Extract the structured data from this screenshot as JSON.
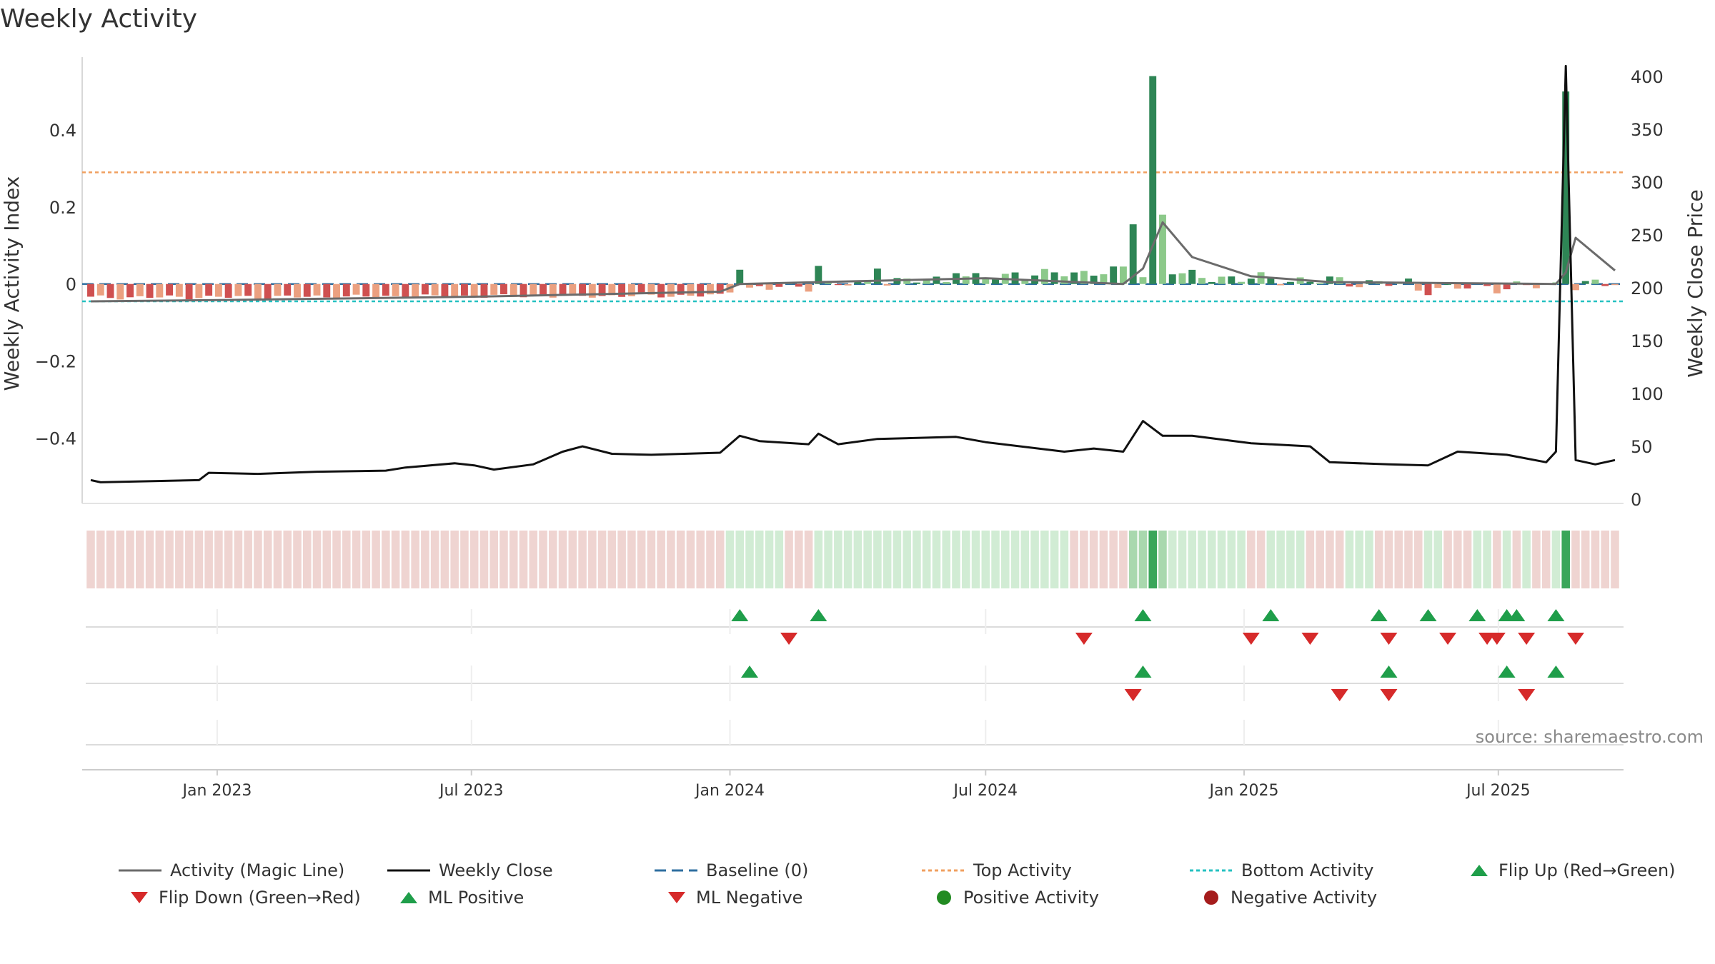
{
  "title": "Weekly Activity",
  "source": "source: sharemaestro.com",
  "colors": {
    "magic_line": "#6b6b6b",
    "close": "#111111",
    "baseline": "#2f6fa0",
    "top": "#f0a060",
    "bottom": "#25c1c1",
    "pos_dark": "#2e8555",
    "pos_light": "#8cc98a",
    "neg_dark": "#cf5050",
    "neg_light": "#eba080",
    "up": "#1f9e4a",
    "down": "#d62a2a",
    "pos_marker": "#228b22",
    "neg_marker": "#a51c1c",
    "strip_neg": "#efd4d1",
    "strip_pos": "#d1ecd4",
    "strip_pos_strong": "#3aa65a",
    "strip_pos_mid": "#a9d8ae"
  },
  "chart_data": {
    "type": "bar",
    "title": "Weekly Activity",
    "ylabel": "Weekly Activity Index",
    "y2label": "Weekly Close Price",
    "ylim": [
      -0.57,
      0.58
    ],
    "y2lim": [
      -4,
      415
    ],
    "yticks": [
      0.4,
      0.2,
      0,
      -0.2,
      -0.4
    ],
    "ytick_labels": [
      "0.4",
      "0.2",
      "0",
      "−0.2",
      "−0.4"
    ],
    "y2ticks": [
      400,
      350,
      300,
      250,
      200,
      150,
      100,
      50,
      0
    ],
    "x_range": [
      "2022-10-03",
      "2025-09-22"
    ],
    "xticks": [
      "2023-01-01",
      "2023-07-01",
      "2024-01-01",
      "2024-07-01",
      "2025-01-01",
      "2025-07-01"
    ],
    "xtick_labels": [
      "Jan 2023",
      "Jul 2023",
      "Jan 2024",
      "Jul 2024",
      "Jan 2025",
      "Jul 2025"
    ],
    "top_activity": 0.29,
    "bottom_activity": -0.045,
    "baseline": 0,
    "activity_segments": [
      {
        "start": "2022-10-03",
        "end": "2023-12-25",
        "from": -0.035,
        "to": -0.03,
        "noise": 0.004
      },
      {
        "start": "2024-01-01",
        "end": "2024-10-07",
        "from": -0.015,
        "to": 0.035,
        "noise": 0.01
      },
      {
        "start": "2024-10-14",
        "end": "2025-04-28",
        "from": 0.025,
        "to": 0.0,
        "noise": 0.012
      },
      {
        "start": "2025-05-05",
        "end": "2025-09-22",
        "from": -0.012,
        "to": 0.0,
        "noise": 0.012
      }
    ],
    "activity_spikes": [
      {
        "date": "2024-01-08",
        "value": 0.037
      },
      {
        "date": "2024-03-04",
        "value": 0.047
      },
      {
        "date": "2024-04-15",
        "value": 0.04
      },
      {
        "date": "2024-06-10",
        "value": 0.028
      },
      {
        "date": "2024-07-22",
        "value": 0.03
      },
      {
        "date": "2024-10-14",
        "value": 0.155
      },
      {
        "date": "2024-10-28",
        "value": 0.54
      },
      {
        "date": "2024-11-04",
        "value": 0.18
      },
      {
        "date": "2024-11-11",
        "value": 0.025
      },
      {
        "date": "2025-08-18",
        "value": 0.5
      }
    ],
    "magic_line": [
      {
        "date": "2022-10-03",
        "value": -0.045
      },
      {
        "date": "2023-01-02",
        "value": -0.042
      },
      {
        "date": "2023-07-03",
        "value": -0.033
      },
      {
        "date": "2023-12-25",
        "value": -0.02
      },
      {
        "date": "2024-01-08",
        "value": 0.0
      },
      {
        "date": "2024-07-01",
        "value": 0.015
      },
      {
        "date": "2024-10-07",
        "value": 0.0
      },
      {
        "date": "2024-10-21",
        "value": 0.04
      },
      {
        "date": "2024-11-04",
        "value": 0.16
      },
      {
        "date": "2024-11-25",
        "value": 0.07
      },
      {
        "date": "2025-01-06",
        "value": 0.02
      },
      {
        "date": "2025-03-03",
        "value": 0.005
      },
      {
        "date": "2025-08-11",
        "value": 0.0
      },
      {
        "date": "2025-08-18",
        "value": 0.03
      },
      {
        "date": "2025-08-25",
        "value": 0.12
      },
      {
        "date": "2025-09-22",
        "value": 0.035
      }
    ],
    "weekly_close": [
      {
        "date": "2022-10-03",
        "value": 18
      },
      {
        "date": "2022-10-10",
        "value": 16
      },
      {
        "date": "2022-12-19",
        "value": 18
      },
      {
        "date": "2022-12-26",
        "value": 25
      },
      {
        "date": "2023-01-30",
        "value": 24
      },
      {
        "date": "2023-03-13",
        "value": 26
      },
      {
        "date": "2023-05-01",
        "value": 27
      },
      {
        "date": "2023-05-15",
        "value": 30
      },
      {
        "date": "2023-06-19",
        "value": 34
      },
      {
        "date": "2023-07-03",
        "value": 32
      },
      {
        "date": "2023-07-17",
        "value": 28
      },
      {
        "date": "2023-08-14",
        "value": 33
      },
      {
        "date": "2023-09-04",
        "value": 45
      },
      {
        "date": "2023-09-18",
        "value": 50
      },
      {
        "date": "2023-10-09",
        "value": 43
      },
      {
        "date": "2023-11-06",
        "value": 42
      },
      {
        "date": "2023-12-25",
        "value": 44
      },
      {
        "date": "2024-01-08",
        "value": 60
      },
      {
        "date": "2024-01-22",
        "value": 55
      },
      {
        "date": "2024-02-26",
        "value": 52
      },
      {
        "date": "2024-03-04",
        "value": 62
      },
      {
        "date": "2024-03-18",
        "value": 52
      },
      {
        "date": "2024-04-15",
        "value": 57
      },
      {
        "date": "2024-06-10",
        "value": 59
      },
      {
        "date": "2024-07-01",
        "value": 54
      },
      {
        "date": "2024-08-26",
        "value": 45
      },
      {
        "date": "2024-09-16",
        "value": 48
      },
      {
        "date": "2024-10-07",
        "value": 45
      },
      {
        "date": "2024-10-21",
        "value": 74
      },
      {
        "date": "2024-11-04",
        "value": 60
      },
      {
        "date": "2024-11-25",
        "value": 60
      },
      {
        "date": "2025-01-06",
        "value": 53
      },
      {
        "date": "2025-02-17",
        "value": 50
      },
      {
        "date": "2025-03-03",
        "value": 35
      },
      {
        "date": "2025-04-14",
        "value": 33
      },
      {
        "date": "2025-05-12",
        "value": 32
      },
      {
        "date": "2025-06-02",
        "value": 45
      },
      {
        "date": "2025-07-07",
        "value": 42
      },
      {
        "date": "2025-08-04",
        "value": 35
      },
      {
        "date": "2025-08-11",
        "value": 45
      },
      {
        "date": "2025-08-18",
        "value": 410
      },
      {
        "date": "2025-08-25",
        "value": 37
      },
      {
        "date": "2025-09-08",
        "value": 33
      },
      {
        "date": "2025-09-22",
        "value": 37
      }
    ],
    "regime_strip": [
      {
        "start": "2022-10-03",
        "end": "2023-12-25",
        "state": "neg"
      },
      {
        "start": "2024-01-01",
        "end": "2024-02-05",
        "state": "pos"
      },
      {
        "start": "2024-02-12",
        "end": "2024-02-26",
        "state": "neg"
      },
      {
        "start": "2024-03-04",
        "end": "2024-08-26",
        "state": "pos"
      },
      {
        "start": "2024-09-02",
        "end": "2024-10-07",
        "state": "neg"
      },
      {
        "start": "2024-10-14",
        "end": "2024-10-21",
        "state": "pos_mid"
      },
      {
        "start": "2024-10-28",
        "end": "2024-10-28",
        "state": "pos_strong"
      },
      {
        "start": "2024-11-04",
        "end": "2024-11-04",
        "state": "pos_mid"
      },
      {
        "start": "2024-11-11",
        "end": "2024-12-30",
        "state": "pos"
      },
      {
        "start": "2025-01-06",
        "end": "2025-01-13",
        "state": "neg"
      },
      {
        "start": "2025-01-20",
        "end": "2025-02-10",
        "state": "pos"
      },
      {
        "start": "2025-02-17",
        "end": "2025-03-10",
        "state": "neg"
      },
      {
        "start": "2025-03-17",
        "end": "2025-03-31",
        "state": "pos"
      },
      {
        "start": "2025-04-07",
        "end": "2025-05-05",
        "state": "neg"
      },
      {
        "start": "2025-05-12",
        "end": "2025-05-19",
        "state": "pos"
      },
      {
        "start": "2025-05-26",
        "end": "2025-06-09",
        "state": "neg"
      },
      {
        "start": "2025-06-16",
        "end": "2025-06-23",
        "state": "pos"
      },
      {
        "start": "2025-06-30",
        "end": "2025-06-30",
        "state": "neg"
      },
      {
        "start": "2025-07-07",
        "end": "2025-07-07",
        "state": "pos"
      },
      {
        "start": "2025-07-14",
        "end": "2025-07-14",
        "state": "neg"
      },
      {
        "start": "2025-07-21",
        "end": "2025-07-21",
        "state": "pos"
      },
      {
        "start": "2025-07-28",
        "end": "2025-08-04",
        "state": "neg"
      },
      {
        "start": "2025-08-11",
        "end": "2025-08-11",
        "state": "pos"
      },
      {
        "start": "2025-08-18",
        "end": "2025-08-18",
        "state": "pos_strong"
      },
      {
        "start": "2025-08-25",
        "end": "2025-09-22",
        "state": "neg"
      }
    ],
    "flip_up": [
      "2024-01-08",
      "2024-03-04",
      "2024-10-21",
      "2025-01-20",
      "2025-04-07",
      "2025-05-12",
      "2025-06-16",
      "2025-07-07",
      "2025-07-14",
      "2025-08-11"
    ],
    "flip_down": [
      "2024-02-12",
      "2024-09-09",
      "2025-01-06",
      "2025-02-17",
      "2025-04-14",
      "2025-05-26",
      "2025-06-23",
      "2025-06-30",
      "2025-07-21",
      "2025-08-25"
    ],
    "ml_positive": [
      "2024-01-15",
      "2024-10-21",
      "2025-04-14",
      "2025-07-07",
      "2025-08-11"
    ],
    "ml_negative": [
      "2024-10-14",
      "2025-03-10",
      "2025-04-14",
      "2025-07-21"
    ],
    "positive_activity": [],
    "negative_activity": []
  },
  "legend": {
    "magic_line": "Activity (Magic Line)",
    "weekly_close": "Weekly Close",
    "baseline": "Baseline (0)",
    "top": "Top Activity",
    "bottom": "Bottom Activity",
    "flip_up": "Flip Up (Red→Green)",
    "flip_down": "Flip Down (Green→Red)",
    "ml_positive": "ML Positive",
    "ml_negative": "ML Negative",
    "positive_activity": "Positive Activity",
    "negative_activity": "Negative Activity"
  }
}
